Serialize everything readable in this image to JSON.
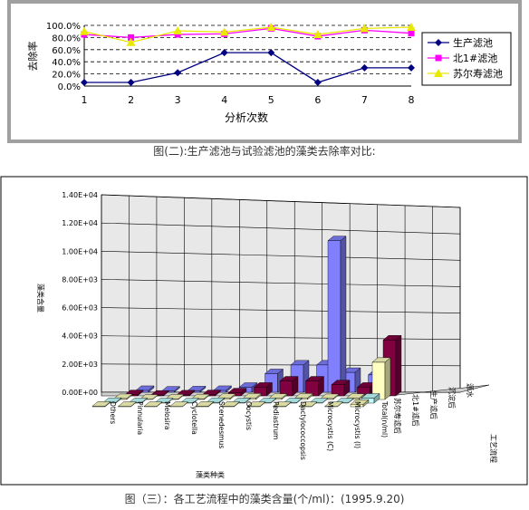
{
  "chart_data": [
    {
      "type": "line",
      "categories": [
        "1",
        "2",
        "3",
        "4",
        "5",
        "6",
        "7",
        "8"
      ],
      "series": [
        {
          "name": "生产滤池",
          "values": [
            6.0,
            6.0,
            22.0,
            55.0,
            55.0,
            6.0,
            30.0,
            30.0
          ],
          "color": "#000080",
          "marker": "diamond"
        },
        {
          "name": "北1#滤池",
          "values": [
            85.0,
            80.0,
            85.0,
            86.0,
            95.0,
            82.0,
            92.0,
            87.0
          ],
          "color": "#ff00ff",
          "marker": "square"
        },
        {
          "name": "苏尔寿滤池",
          "values": [
            90.0,
            72.0,
            91.0,
            89.0,
            97.0,
            85.0,
            95.0,
            97.0
          ],
          "color": "#e8e800",
          "marker": "triangle"
        }
      ],
      "yticks": [
        "100.0%",
        "80.0%",
        "60.0%",
        "40.0%",
        "20.0%",
        "0.0%"
      ],
      "ylim": [
        0,
        100
      ],
      "xlabel": "分析次数",
      "ylabel": "去除率",
      "legend": "right",
      "grid": "dashed horizontal"
    },
    {
      "type": "bar",
      "subtype": "3d-column",
      "categories": [
        "Others",
        "Pinnularia",
        "Melosira",
        "Cyclotella",
        "Scenedesmus",
        "Oocystis",
        "Pediastrum",
        "Dactylococcopsis",
        "Microcystis (C)",
        "Microcystis (I)",
        "Total(n/ml)"
      ],
      "series": [
        {
          "name": "苏尔寿滤后",
          "values": [
            50,
            30,
            30,
            20,
            50,
            40,
            30,
            30,
            20,
            20,
            200
          ],
          "color": "#ffffc0"
        },
        {
          "name": "北1#滤后",
          "values": [
            60,
            40,
            30,
            30,
            60,
            50,
            40,
            40,
            30,
            30,
            400
          ],
          "color": "#c0ffff"
        },
        {
          "name": "生产滤后",
          "values": [
            80,
            30,
            50,
            60,
            100,
            120,
            100,
            120,
            80,
            100,
            3000
          ],
          "color": "#ffffc0"
        },
        {
          "name": "沉淀后",
          "values": [
            100,
            60,
            80,
            100,
            250,
            700,
            1200,
            1200,
            900,
            700,
            4500
          ],
          "color": "#800040"
        },
        {
          "name": "源水",
          "values": [
            150,
            100,
            120,
            150,
            400,
            1500,
            2200,
            2200,
            1600,
            1400,
            12200
          ],
          "color": "#8080ff"
        }
      ],
      "zlabels": [
        "苏尔寿滤后",
        "北1#滤后",
        "生产滤后",
        "沉淀后",
        "源水"
      ],
      "yticks": [
        "1.40E+04",
        "1.20E+04",
        "1.00E+04",
        "8.00E+03",
        "6.00E+03",
        "4.00E+03",
        "2.00E+03",
        "0.00E+00"
      ],
      "ylim": [
        0,
        14000
      ],
      "ylabel": "藻类含量",
      "xlabel": "藻类种类",
      "zlabel": "工艺流程"
    }
  ],
  "captions": {
    "fig1": "图(二):生产滤池与试验滤池的藻类去除率对比:",
    "fig2": "图（三）：各工艺流程中的藻类含量(个/ml)：(1995.9.20)"
  }
}
